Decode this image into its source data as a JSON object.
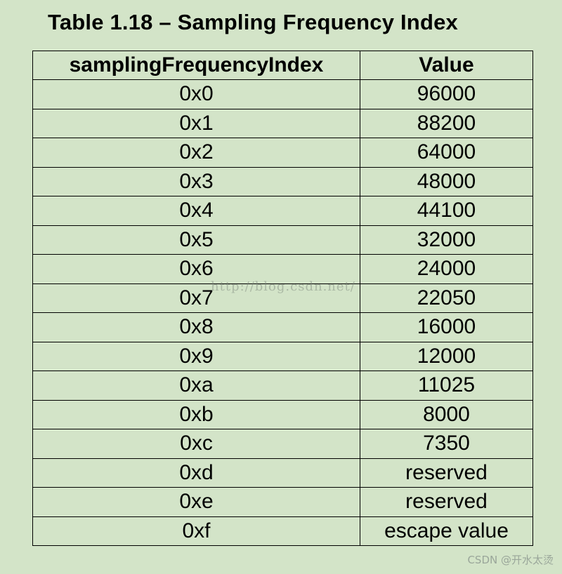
{
  "title": "Table 1.18 – Sampling Frequency Index",
  "table": {
    "headers": [
      "samplingFrequencyIndex",
      "Value"
    ],
    "rows": [
      [
        "0x0",
        "96000"
      ],
      [
        "0x1",
        "88200"
      ],
      [
        "0x2",
        "64000"
      ],
      [
        "0x3",
        "48000"
      ],
      [
        "0x4",
        "44100"
      ],
      [
        "0x5",
        "32000"
      ],
      [
        "0x6",
        "24000"
      ],
      [
        "0x7",
        "22050"
      ],
      [
        "0x8",
        "16000"
      ],
      [
        "0x9",
        "12000"
      ],
      [
        "0xa",
        "11025"
      ],
      [
        "0xb",
        "8000"
      ],
      [
        "0xc",
        "7350"
      ],
      [
        "0xd",
        "reserved"
      ],
      [
        "0xe",
        "reserved"
      ],
      [
        "0xf",
        "escape value"
      ]
    ]
  },
  "watermark": "http://blog.csdn.net/",
  "credit": "CSDN @开水太烫",
  "colors": {
    "background": "#d3e4c8",
    "border": "#000000"
  }
}
